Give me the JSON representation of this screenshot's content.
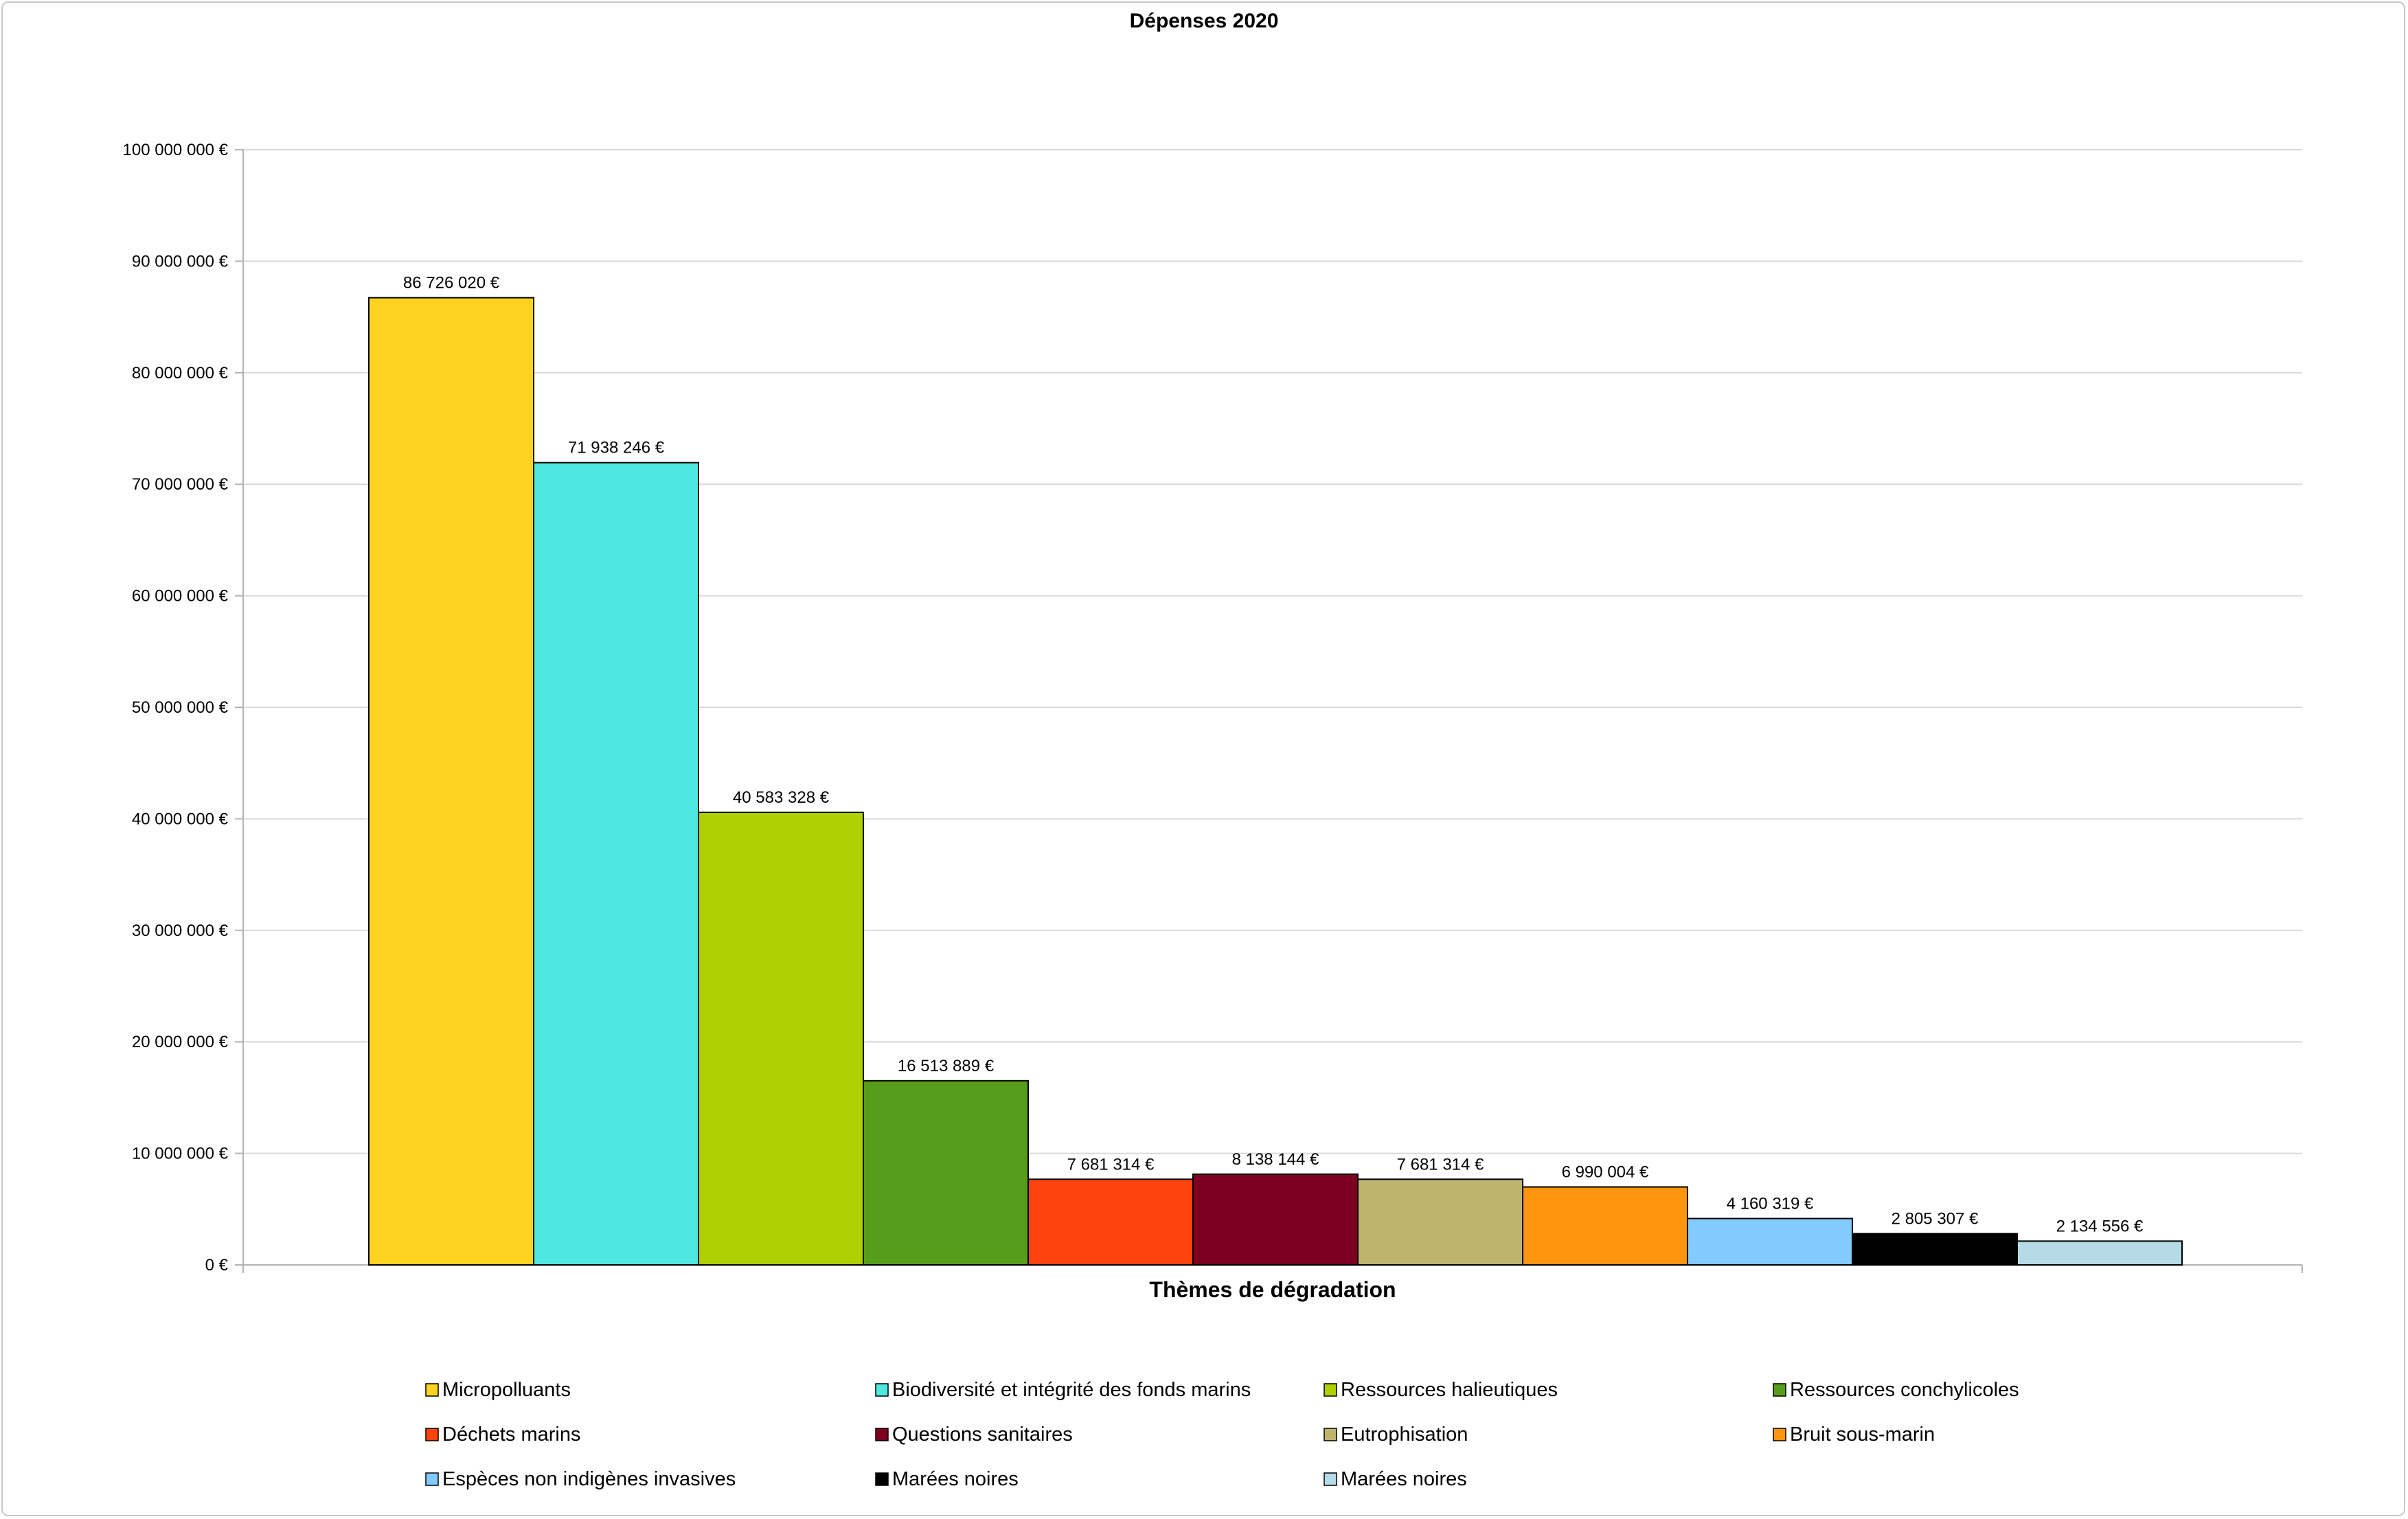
{
  "chart_data": {
    "type": "bar",
    "title": "Dépenses 2020",
    "xlabel": "Thèmes de dégradation",
    "ylabel": "",
    "ylim": [
      0,
      100000000
    ],
    "ytick_step": 10000000,
    "yticks": [
      "0 €",
      "10 000 000 €",
      "20 000 000 €",
      "30 000 000 €",
      "40 000 000 €",
      "50 000 000 €",
      "60 000 000 €",
      "70 000 000 €",
      "80 000 000 €",
      "90 000 000 €",
      "100 000 000 €"
    ],
    "grid": true,
    "legend_position": "bottom",
    "series": [
      {
        "name": "Micropolluants",
        "value": 86726020,
        "label": "86 726 020 €",
        "color": "#FFD320"
      },
      {
        "name": "Biodiversité et intégrité des fonds marins",
        "value": 71938246,
        "label": "71 938 246 €",
        "color": "#4FE8E0"
      },
      {
        "name": "Ressources halieutiques",
        "value": 40583328,
        "label": "40 583 328 €",
        "color": "#AED000"
      },
      {
        "name": "Ressources conchylicoles",
        "value": 16513889,
        "label": "16 513 889 €",
        "color": "#579D1C"
      },
      {
        "name": "Déchets marins",
        "value": 7681314,
        "label": "7 681 314 €",
        "color": "#FF420E"
      },
      {
        "name": "Questions sanitaires",
        "value": 8138144,
        "label": "8 138 144 €",
        "color": "#7E0021"
      },
      {
        "name": "Eutrophisation",
        "value": 7681314,
        "label": "7 681 314 €",
        "color": "#BDB56E"
      },
      {
        "name": "Bruit sous-marin",
        "value": 6990004,
        "label": "6 990 004 €",
        "color": "#FF950E"
      },
      {
        "name": "Espèces non indigènes invasives",
        "value": 4160319,
        "label": "4 160 319 €",
        "color": "#83CAFF"
      },
      {
        "name": "Marées noires",
        "value": 2805307,
        "label": "2 805 307 €",
        "color": "#000000"
      },
      {
        "name": "Marées noires",
        "value": 2134556,
        "label": "2 134 556 €",
        "color": "#B4DBE6"
      }
    ]
  }
}
